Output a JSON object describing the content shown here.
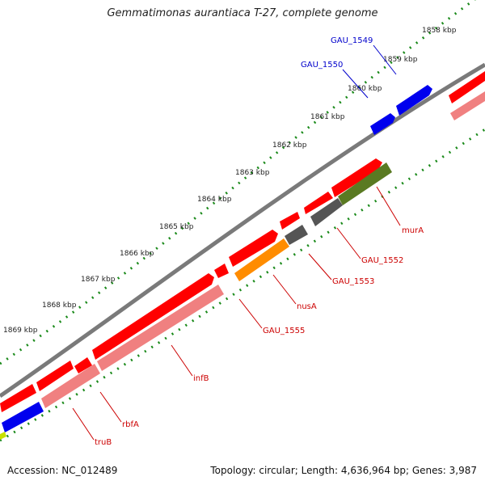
{
  "title": "Gemmatimonas aurantiaca T-27, complete genome",
  "footer": {
    "accession": "Accession: NC_012489",
    "summary": "Topology: circular; Length: 4,636,964 bp; Genes: 3,987"
  },
  "colors": {
    "backbone": "#7a7a7a",
    "tick_track": "#1a8a1a",
    "forward_gene": "#ff0000",
    "reverse_gene": "#f08080",
    "blue_gene": "#0000ee",
    "dark_gray_gene": "#555555",
    "orange_gene": "#ff8c00",
    "olive_gene": "#5a7a22",
    "label_red": "#cc0000",
    "label_blue": "#0000cc"
  },
  "ticks": [
    "1858 kbp",
    "1859 kbp",
    "1860 kbp",
    "1861 kbp",
    "1862 kbp",
    "1863 kbp",
    "1864 kbp",
    "1865 kbp",
    "1866 kbp",
    "1867 kbp",
    "1868 kbp",
    "1869 kbp"
  ],
  "gene_labels": [
    {
      "name": "GAU_1549",
      "color": "blue"
    },
    {
      "name": "GAU_1550",
      "color": "blue"
    },
    {
      "name": "murA",
      "color": "red"
    },
    {
      "name": "GAU_1552",
      "color": "red"
    },
    {
      "name": "GAU_1553",
      "color": "red"
    },
    {
      "name": "nusA",
      "color": "red"
    },
    {
      "name": "GAU_1555",
      "color": "red"
    },
    {
      "name": "infB",
      "color": "red"
    },
    {
      "name": "rbfA",
      "color": "red"
    },
    {
      "name": "truB",
      "color": "red"
    }
  ]
}
